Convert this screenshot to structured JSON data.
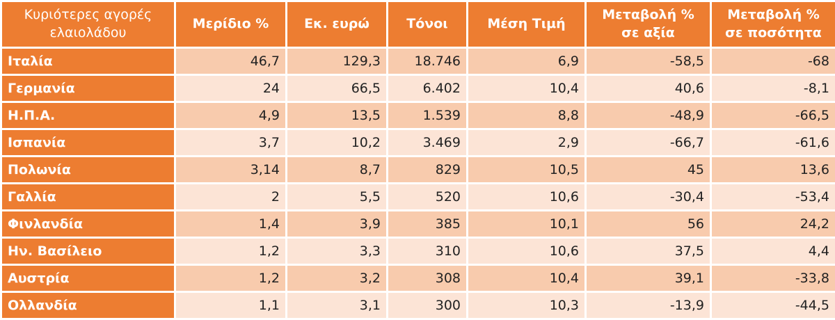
{
  "table": {
    "header": [
      "Κυριότερες αγορές ελαιολάδου",
      "Μερίδιο %",
      "Εκ. ευρώ",
      "Τόνοι",
      "Μέση Τιμή",
      "Μεταβολή % σε αξία",
      "Μεταβολή % σε ποσότητα"
    ],
    "rows": [
      [
        "Ιταλία",
        "46,7",
        "129,3",
        "18.746",
        "6,9",
        "-58,5",
        "-68"
      ],
      [
        "Γερμανία",
        "24",
        "66,5",
        "6.402",
        "10,4",
        "40,6",
        "-8,1"
      ],
      [
        "Η.Π.Α.",
        "4,9",
        "13,5",
        "1.539",
        "8,8",
        "-48,9",
        "-66,5"
      ],
      [
        "Ισπανία",
        "3,7",
        "10,2",
        "3.469",
        "2,9",
        "-66,7",
        "-61,6"
      ],
      [
        "Πολωνία",
        "3,14",
        "8,7",
        "829",
        "10,5",
        "45",
        "13,6"
      ],
      [
        "Γαλλία",
        "2",
        "5,5",
        "520",
        "10,6",
        "-30,4",
        "-53,4"
      ],
      [
        "Φινλανδία",
        "1,4",
        "3,9",
        "385",
        "10,1",
        "56",
        "24,2"
      ],
      [
        "Ην. Βασίλειο",
        "1,2",
        "3,3",
        "310",
        "10,6",
        "37,5",
        "4,4"
      ],
      [
        "Αυστρία",
        "1,2",
        "3,2",
        "308",
        "10,4",
        "39,1",
        "-33,8"
      ],
      [
        "Ολλανδία",
        "1,1",
        "3,1",
        "300",
        "10,3",
        "-13,9",
        "-44,5"
      ]
    ]
  }
}
